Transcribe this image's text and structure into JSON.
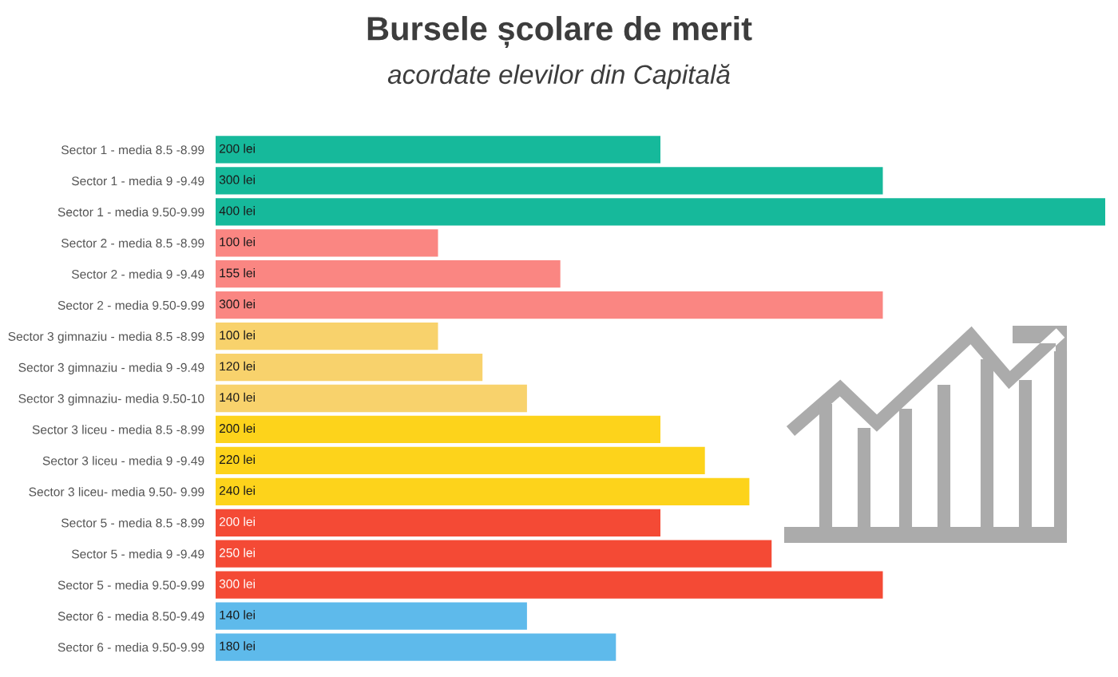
{
  "chart_data": {
    "type": "bar",
    "orientation": "horizontal",
    "title": "Bursele școlare de merit",
    "subtitle": "acordate elevilor din Capitală",
    "categories": [
      "Sector 1 - media 8.5 -8.99",
      "Sector 1 - media 9 -9.49",
      "Sector 1 - media 9.50-9.99",
      "Sector 2 - media 8.5 -8.99",
      "Sector 2 - media 9 -9.49",
      "Sector 2 - media 9.50-9.99",
      "Sector 3 gimnaziu - media 8.5 -8.99",
      "Sector 3 gimnaziu - media 9 -9.49",
      "Sector 3 gimnaziu- media 9.50-10",
      "Sector 3 liceu - media 8.5 -8.99",
      "Sector 3 liceu - media 9 -9.49",
      "Sector 3 liceu- media 9.50- 9.99",
      "Sector 5 - media 8.5 -8.99",
      "Sector 5 - media 9 -9.49",
      "Sector 5 - media 9.50-9.99",
      "Sector 6 - media 8.50-9.49",
      "Sector 6 - media 9.50-9.99"
    ],
    "values": [
      200,
      300,
      400,
      100,
      155,
      300,
      100,
      120,
      140,
      200,
      220,
      240,
      200,
      250,
      300,
      140,
      180
    ],
    "value_labels": [
      "200 lei",
      "300 lei",
      "400 lei",
      "100 lei",
      "155 lei",
      "300 lei",
      "100 lei",
      "120 lei",
      "140 lei",
      "200 lei",
      "220 lei",
      "240 lei",
      "200 lei",
      "250 lei",
      "300 lei",
      "140 lei",
      "180 lei"
    ],
    "colors": [
      "#16b99b",
      "#16b99b",
      "#16b99b",
      "#fa8682",
      "#fa8682",
      "#fa8682",
      "#f8d26c",
      "#f8d26c",
      "#f8d26c",
      "#fdd31b",
      "#fdd31b",
      "#fdd31b",
      "#f44a35",
      "#f44a35",
      "#f44a35",
      "#5ebaeb",
      "#5ebaeb"
    ],
    "tick_labels": "y"
  }
}
